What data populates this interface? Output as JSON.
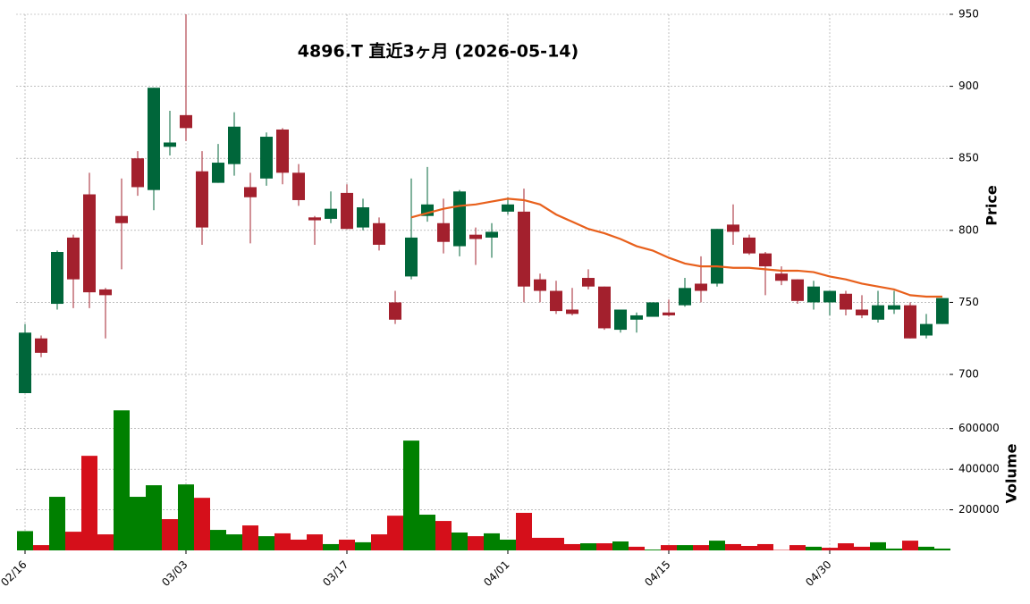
{
  "chart_data": {
    "type": "candlestick",
    "title": "4896.T 直近3ヶ月 (2026-05-14)",
    "y_label": "Price",
    "categories": [
      "02/16",
      null,
      null,
      null,
      null,
      null,
      null,
      null,
      null,
      null,
      "03/03",
      null,
      null,
      null,
      null,
      null,
      null,
      null,
      null,
      null,
      "03/17",
      null,
      null,
      null,
      null,
      null,
      null,
      null,
      null,
      null,
      "04/01",
      null,
      null,
      null,
      null,
      null,
      null,
      null,
      null,
      null,
      "04/15",
      null,
      null,
      null,
      null,
      null,
      null,
      null,
      null,
      null,
      "04/30",
      null,
      null,
      null,
      null,
      null,
      null,
      null
    ],
    "open": [
      687,
      725,
      749,
      795,
      825,
      759,
      810,
      850,
      828,
      858,
      880,
      841,
      833,
      846,
      830,
      836,
      870,
      840,
      809,
      808,
      826,
      802,
      805,
      750,
      768,
      810,
      805,
      789,
      797,
      795,
      813,
      813,
      766,
      758,
      745,
      767,
      761,
      731,
      738,
      740,
      743,
      748,
      763,
      763,
      804,
      795,
      784,
      770,
      766,
      750,
      750,
      756,
      745,
      738,
      745,
      748,
      727,
      735
    ],
    "high": [
      735,
      727,
      786,
      797,
      840,
      760,
      836,
      855,
      899,
      883,
      950,
      855,
      860,
      882,
      840,
      868,
      871,
      846,
      810,
      827,
      832,
      822,
      809,
      758,
      836,
      844,
      822,
      828,
      802,
      805,
      823,
      829,
      770,
      765,
      760,
      773,
      761,
      745,
      743,
      750,
      752,
      767,
      782,
      801,
      818,
      797,
      785,
      775,
      766,
      765,
      758,
      758,
      755,
      758,
      758,
      750,
      742,
      753
    ],
    "low": [
      686,
      712,
      745,
      746,
      746,
      725,
      773,
      824,
      814,
      852,
      862,
      790,
      833,
      838,
      791,
      831,
      832,
      817,
      790,
      805,
      801,
      800,
      786,
      735,
      766,
      806,
      784,
      782,
      776,
      781,
      811,
      750,
      750,
      742,
      741,
      759,
      731,
      729,
      729,
      740,
      740,
      747,
      750,
      761,
      790,
      783,
      755,
      762,
      749,
      745,
      741,
      741,
      739,
      736,
      742,
      725,
      725,
      735
    ],
    "close": [
      729,
      715,
      785,
      766,
      757,
      755,
      805,
      830,
      899,
      861,
      871,
      802,
      847,
      872,
      823,
      865,
      840,
      821,
      807,
      815,
      801,
      816,
      790,
      738,
      795,
      818,
      792,
      827,
      794,
      799,
      818,
      761,
      758,
      744,
      742,
      761,
      732,
      745,
      741,
      750,
      741,
      760,
      758,
      801,
      799,
      784,
      775,
      765,
      751,
      761,
      758,
      745,
      741,
      748,
      748,
      725,
      735,
      753
    ],
    "up_color": "#00663a",
    "down_color": "#a3202d",
    "ylim": [
      687,
      950
    ],
    "yticks": [
      700,
      750,
      800,
      850,
      900,
      950
    ],
    "grid": true,
    "ma": {
      "color": "#e8601c",
      "values": [
        null,
        null,
        null,
        null,
        null,
        null,
        null,
        null,
        null,
        null,
        null,
        null,
        null,
        null,
        null,
        null,
        null,
        null,
        null,
        null,
        null,
        null,
        null,
        null,
        809,
        812,
        815,
        817,
        818,
        820,
        822,
        821,
        818,
        811,
        806,
        801,
        798,
        794,
        789,
        786,
        781,
        777,
        775,
        775,
        774,
        774,
        773,
        772,
        772,
        771,
        768,
        766,
        763,
        761,
        759,
        755,
        754,
        754
      ]
    },
    "volume": {
      "y_label": "Volume",
      "up_color": "#008000",
      "down_color": "#d50f1a",
      "ylim": [
        0,
        700000
      ],
      "yticks": [
        200000,
        400000,
        600000
      ],
      "values": [
        95000,
        26000,
        264000,
        92000,
        466000,
        79000,
        690000,
        264000,
        321000,
        154000,
        325000,
        259000,
        101000,
        79000,
        123000,
        70000,
        84000,
        53000,
        79000,
        31000,
        53000,
        40000,
        79000,
        171000,
        541000,
        176000,
        145000,
        88000,
        70000,
        84000,
        53000,
        185000,
        62000,
        62000,
        31000,
        35000,
        35000,
        44000,
        18000,
        4000,
        26000,
        26000,
        26000,
        48000,
        31000,
        22000,
        31000,
        2000,
        26000,
        18000,
        13000,
        35000,
        18000,
        40000,
        9000,
        48000,
        18000,
        9000
      ]
    }
  }
}
